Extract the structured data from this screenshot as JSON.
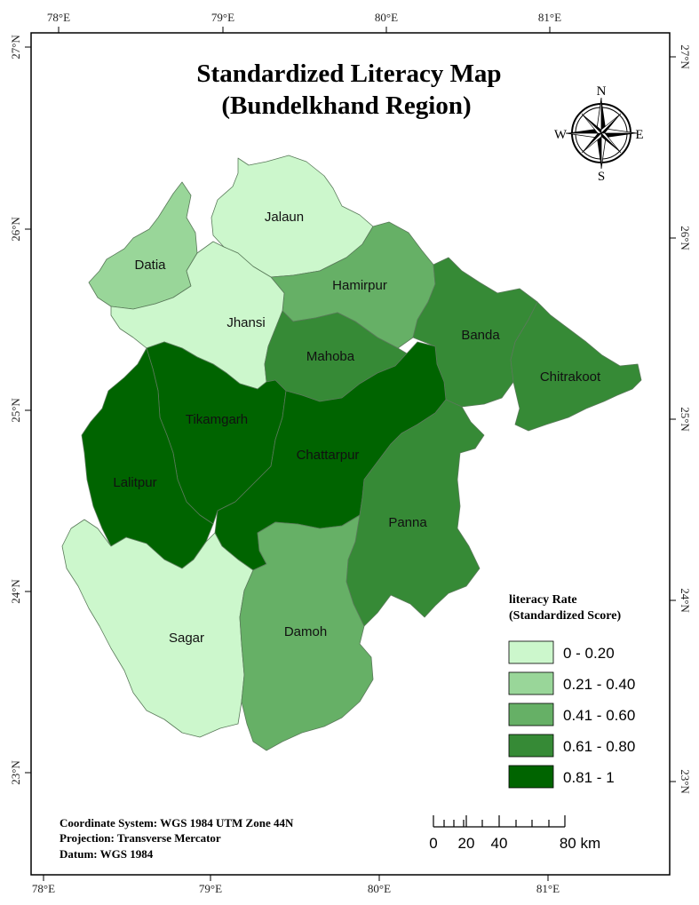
{
  "title_line1": "Standardized Literacy Map",
  "title_line2": "(Bundelkhand Region)",
  "axis": {
    "top_lon": [
      "78°E",
      "79°E",
      "80°E",
      "81°E"
    ],
    "bottom_lon": [
      "78°E",
      "79°E",
      "80°E",
      "81°E"
    ],
    "left_lat": [
      "27°N",
      "26°N",
      "25°N",
      "24°N",
      "23°N"
    ],
    "right_lat": [
      "27°N",
      "26°N",
      "25°N",
      "24°N",
      "23°N"
    ]
  },
  "compass": {
    "n": "N",
    "s": "S",
    "e": "E",
    "w": "W"
  },
  "districts": {
    "jalaun": "Jalaun",
    "datia": "Datia",
    "hamirpur": "Hamirpur",
    "jhansi": "Jhansi",
    "banda": "Banda",
    "mahoba": "Mahoba",
    "chitrakoot": "Chitrakoot",
    "tikamgarh": "Tikamgarh",
    "chattarpur": "Chattarpur",
    "lalitpur": "Lalitpur",
    "panna": "Panna",
    "sagar": "Sagar",
    "damoh": "Damoh"
  },
  "district_class": {
    "jalaun": 0,
    "datia": 1,
    "hamirpur": 2,
    "jhansi": 0,
    "banda": 3,
    "mahoba": 3,
    "chitrakoot": 3,
    "tikamgarh": 4,
    "chattarpur": 4,
    "lalitpur": 4,
    "panna": 3,
    "sagar": 0,
    "damoh": 2
  },
  "legend": {
    "title_line1": "literacy Rate",
    "title_line2": "(Standardized Score)",
    "classes": [
      {
        "label": "0 - 0.20",
        "color": "#ccf7cc"
      },
      {
        "label": "0.21 - 0.40",
        "color": "#99d699"
      },
      {
        "label": "0.41 - 0.60",
        "color": "#66b066"
      },
      {
        "label": "0.61 - 0.80",
        "color": "#368a36"
      },
      {
        "label": "0.81 - 1",
        "color": "#006400"
      }
    ]
  },
  "info": {
    "coordinate_system": "Coordinate System: WGS 1984 UTM Zone 44N",
    "projection": "Projection: Transverse Mercator",
    "datum": "Datum: WGS 1984"
  },
  "scale": {
    "labels": [
      "0",
      "20",
      "40",
      "80 km"
    ]
  }
}
